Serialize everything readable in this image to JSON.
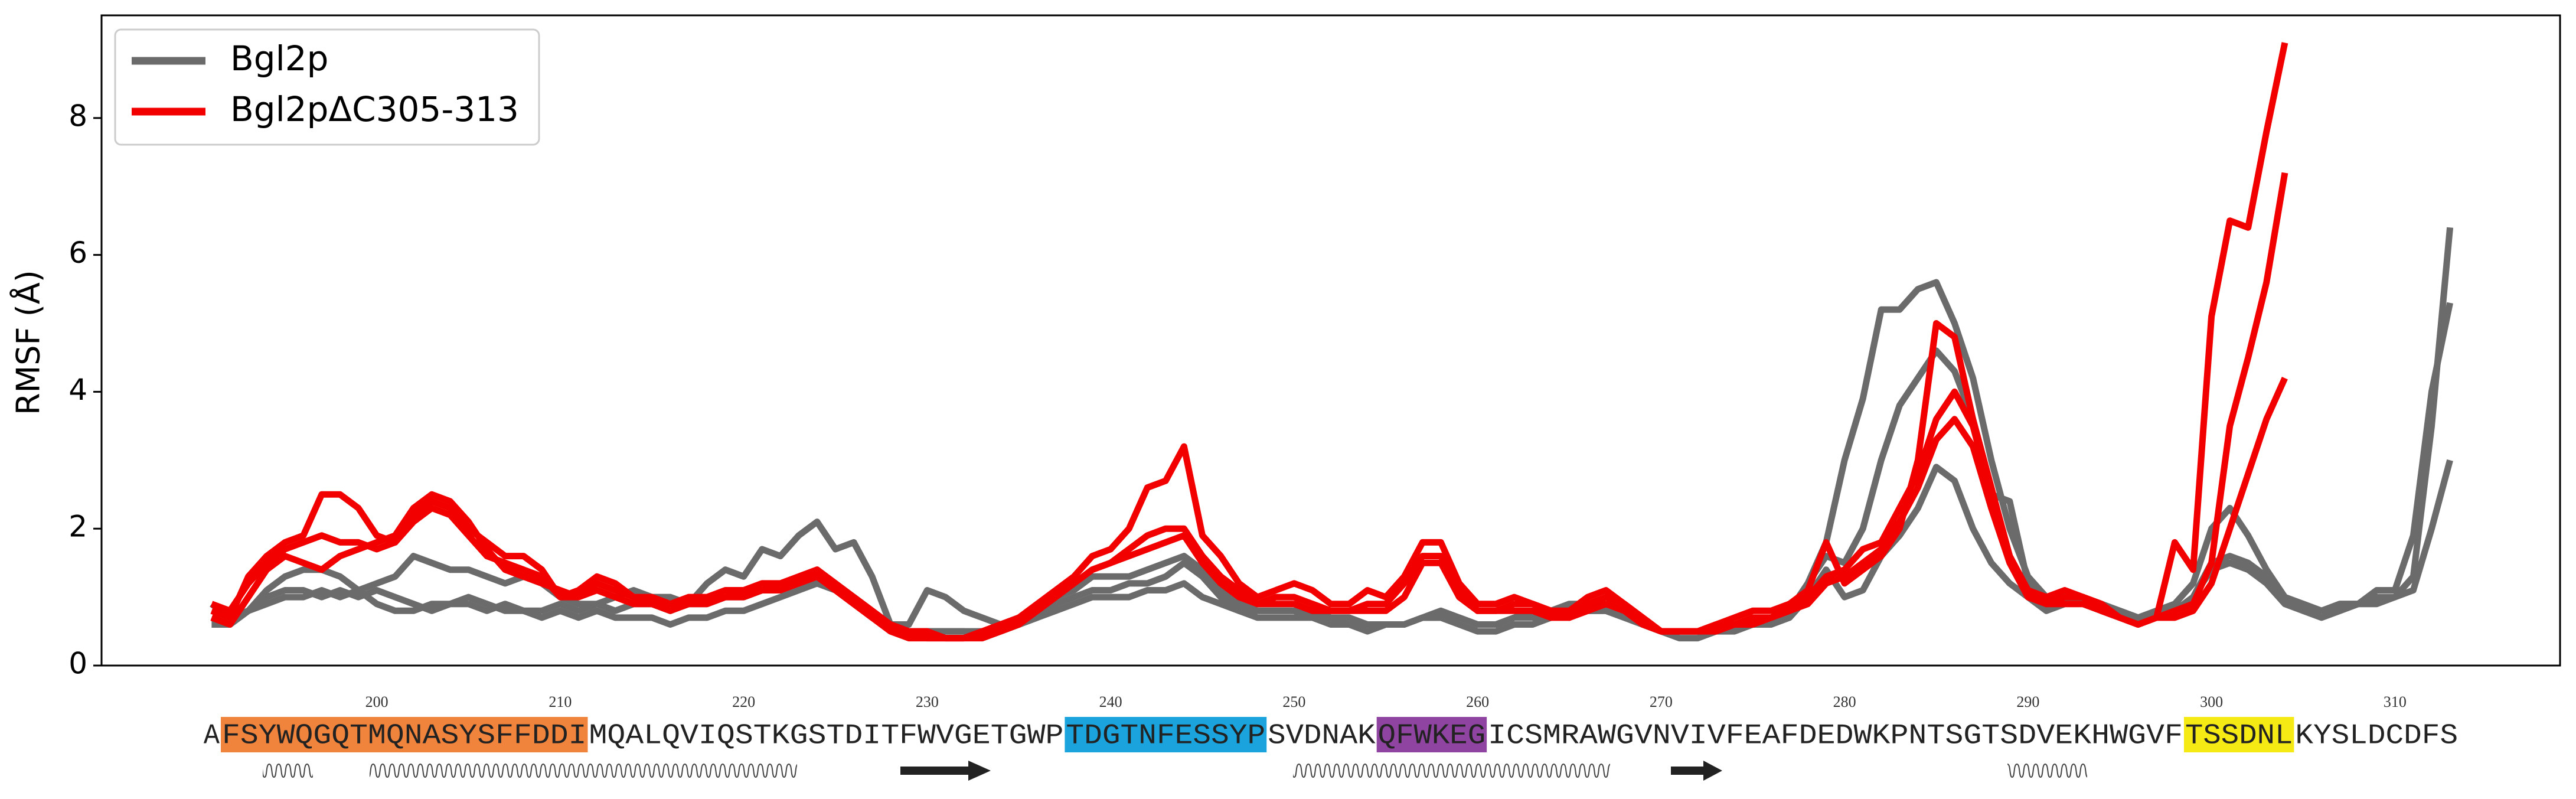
{
  "chart_data": {
    "type": "line",
    "y_label": "RMSF (Å)",
    "x": [
      191,
      192,
      193,
      194,
      195,
      196,
      197,
      198,
      199,
      200,
      201,
      202,
      203,
      204,
      205,
      206,
      207,
      208,
      209,
      210,
      211,
      212,
      213,
      214,
      215,
      216,
      217,
      218,
      219,
      220,
      221,
      222,
      223,
      224,
      225,
      226,
      227,
      228,
      229,
      230,
      231,
      232,
      233,
      234,
      235,
      236,
      237,
      238,
      239,
      240,
      241,
      242,
      243,
      244,
      245,
      246,
      247,
      248,
      249,
      250,
      251,
      252,
      253,
      254,
      255,
      256,
      257,
      258,
      259,
      260,
      261,
      262,
      263,
      264,
      265,
      266,
      267,
      268,
      269,
      270,
      271,
      272,
      273,
      274,
      275,
      276,
      277,
      278,
      279,
      280,
      281,
      282,
      283,
      284,
      285,
      286,
      287,
      288,
      289,
      290,
      291,
      292,
      293,
      294,
      295,
      296,
      297,
      298,
      299,
      300,
      301,
      302,
      303,
      304,
      305,
      306,
      307,
      308,
      309,
      310,
      311,
      312,
      313
    ],
    "xlim": [
      185,
      319
    ],
    "ylim": [
      0,
      9.5
    ],
    "yticks": [
      0,
      2,
      4,
      6,
      8
    ],
    "grid": false,
    "legend": "upper left",
    "series": [
      {
        "name": "Bgl2p",
        "color": "#6b6b6b",
        "replicates": [
          [
            0.9,
            0.7,
            0.8,
            1.0,
            1.1,
            1.1,
            1.0,
            1.1,
            1.0,
            1.1,
            1.0,
            0.9,
            0.8,
            0.9,
            0.9,
            0.8,
            0.9,
            0.8,
            0.8,
            0.9,
            0.8,
            0.9,
            0.8,
            0.9,
            0.9,
            0.8,
            0.9,
            0.9,
            1.0,
            1.0,
            1.1,
            1.1,
            1.2,
            1.4,
            1.2,
            1.0,
            0.8,
            0.6,
            0.5,
            0.5,
            0.5,
            0.5,
            0.5,
            0.5,
            0.6,
            0.7,
            0.8,
            0.9,
            1.0,
            1.0,
            1.0,
            1.1,
            1.1,
            1.2,
            1.0,
            0.9,
            0.8,
            0.8,
            0.8,
            0.8,
            0.8,
            0.7,
            0.7,
            0.6,
            0.6,
            0.6,
            0.7,
            0.7,
            0.7,
            0.6,
            0.6,
            0.7,
            0.7,
            0.7,
            0.8,
            0.8,
            0.8,
            0.7,
            0.6,
            0.5,
            0.5,
            0.5,
            0.5,
            0.6,
            0.6,
            0.7,
            0.8,
            1.2,
            1.8,
            3.0,
            3.9,
            5.2,
            5.2,
            5.5,
            5.6,
            5.0,
            4.2,
            3.0,
            2.0,
            1.3,
            1.0,
            1.0,
            0.9,
            0.8,
            0.8,
            0.7,
            0.7,
            0.8,
            1.0,
            1.5,
            1.6,
            1.5,
            1.3,
            1.0,
            0.9,
            0.8,
            0.9,
            0.9,
            1.0,
            1.0,
            1.3,
            3.5,
            6.4
          ],
          [
            0.6,
            0.6,
            0.8,
            1.1,
            1.3,
            1.4,
            1.4,
            1.3,
            1.1,
            1.2,
            1.3,
            1.6,
            1.5,
            1.4,
            1.4,
            1.3,
            1.2,
            1.3,
            1.2,
            1.0,
            0.9,
            0.9,
            1.0,
            1.1,
            1.0,
            1.0,
            0.9,
            1.2,
            1.4,
            1.3,
            1.7,
            1.6,
            1.9,
            2.1,
            1.7,
            1.8,
            1.3,
            0.6,
            0.6,
            1.1,
            1.0,
            0.8,
            0.7,
            0.6,
            0.7,
            0.8,
            1.0,
            1.1,
            1.3,
            1.3,
            1.3,
            1.4,
            1.5,
            1.6,
            1.4,
            1.1,
            0.9,
            0.8,
            0.8,
            0.8,
            0.7,
            0.7,
            0.6,
            0.6,
            0.6,
            0.6,
            0.7,
            0.8,
            0.7,
            0.6,
            0.6,
            0.7,
            0.8,
            0.8,
            0.9,
            0.9,
            0.9,
            0.8,
            0.6,
            0.5,
            0.5,
            0.5,
            0.5,
            0.6,
            0.6,
            0.7,
            0.8,
            1.2,
            1.6,
            1.5,
            2.0,
            3.0,
            3.8,
            4.2,
            4.6,
            4.3,
            3.6,
            2.5,
            2.4,
            1.2,
            0.9,
            1.0,
            1.0,
            0.9,
            0.8,
            0.7,
            0.8,
            0.9,
            1.2,
            2.0,
            2.3,
            1.9,
            1.4,
            1.0,
            0.8,
            0.8,
            0.9,
            0.9,
            1.1,
            1.1,
            1.9,
            4.0,
            5.3
          ],
          [
            0.7,
            0.6,
            0.8,
            0.9,
            1.0,
            1.0,
            1.1,
            1.0,
            1.1,
            0.9,
            0.8,
            0.8,
            0.9,
            0.9,
            1.0,
            0.9,
            0.8,
            0.8,
            0.7,
            0.8,
            0.7,
            0.8,
            0.7,
            0.7,
            0.7,
            0.6,
            0.7,
            0.7,
            0.8,
            0.8,
            0.9,
            1.0,
            1.1,
            1.2,
            1.1,
            1.0,
            0.8,
            0.6,
            0.5,
            0.5,
            0.5,
            0.5,
            0.4,
            0.5,
            0.6,
            0.7,
            0.9,
            1.0,
            1.1,
            1.1,
            1.2,
            1.2,
            1.3,
            1.5,
            1.3,
            1.0,
            0.8,
            0.7,
            0.7,
            0.7,
            0.7,
            0.6,
            0.6,
            0.5,
            0.6,
            0.6,
            0.7,
            0.7,
            0.6,
            0.5,
            0.5,
            0.6,
            0.6,
            0.7,
            0.8,
            0.8,
            0.8,
            0.7,
            0.6,
            0.5,
            0.4,
            0.4,
            0.5,
            0.5,
            0.6,
            0.6,
            0.7,
            1.0,
            1.4,
            1.0,
            1.1,
            1.6,
            1.9,
            2.3,
            2.9,
            2.7,
            2.0,
            1.5,
            1.2,
            1.0,
            0.8,
            0.9,
            1.0,
            0.8,
            0.7,
            0.7,
            0.7,
            0.8,
            1.0,
            1.4,
            1.5,
            1.4,
            1.2,
            0.9,
            0.8,
            0.7,
            0.8,
            0.9,
            0.9,
            1.0,
            1.1,
            2.0,
            3.0
          ]
        ]
      },
      {
        "name": "Bgl2pΔC305-313",
        "color": "#f20000",
        "replicates": [
          [
            0.8,
            0.7,
            1.3,
            1.6,
            1.8,
            1.9,
            2.5,
            2.5,
            2.3,
            1.9,
            1.8,
            2.2,
            2.4,
            2.3,
            2.0,
            1.8,
            1.6,
            1.6,
            1.4,
            1.0,
            1.1,
            1.3,
            1.2,
            1.0,
            1.0,
            0.9,
            1.0,
            1.0,
            1.1,
            1.1,
            1.2,
            1.2,
            1.3,
            1.4,
            1.2,
            1.0,
            0.8,
            0.6,
            0.5,
            0.4,
            0.4,
            0.4,
            0.5,
            0.5,
            0.7,
            0.9,
            1.1,
            1.3,
            1.6,
            1.7,
            2.0,
            2.6,
            2.7,
            3.2,
            1.9,
            1.6,
            1.2,
            1.0,
            1.1,
            1.2,
            1.1,
            0.9,
            0.9,
            1.1,
            1.0,
            1.3,
            1.8,
            1.8,
            1.2,
            0.9,
            0.9,
            1.0,
            0.9,
            0.8,
            0.8,
            1.0,
            1.1,
            0.9,
            0.7,
            0.5,
            0.5,
            0.5,
            0.6,
            0.7,
            0.8,
            0.8,
            0.9,
            1.1,
            1.8,
            1.2,
            1.4,
            1.6,
            2.0,
            3.0,
            5.0,
            4.8,
            3.6,
            2.6,
            1.6,
            1.1,
            1.0,
            1.1,
            1.0,
            0.9,
            0.7,
            0.6,
            0.7,
            1.8,
            1.4,
            5.1,
            6.5,
            6.4,
            7.8,
            9.1,
            null,
            null,
            null,
            null,
            null,
            null,
            null,
            null,
            null
          ],
          [
            0.7,
            0.6,
            1.0,
            1.4,
            1.6,
            1.5,
            1.4,
            1.6,
            1.7,
            1.8,
            1.9,
            2.3,
            2.5,
            2.4,
            2.1,
            1.7,
            1.4,
            1.3,
            1.2,
            1.1,
            1.0,
            1.2,
            1.1,
            1.0,
            0.9,
            0.9,
            0.9,
            1.0,
            1.0,
            1.1,
            1.1,
            1.2,
            1.2,
            1.3,
            1.1,
            0.9,
            0.7,
            0.6,
            0.5,
            0.5,
            0.4,
            0.4,
            0.5,
            0.6,
            0.7,
            0.8,
            1.0,
            1.2,
            1.4,
            1.5,
            1.7,
            1.9,
            2.0,
            2.0,
            1.6,
            1.3,
            1.1,
            0.9,
            1.0,
            1.0,
            0.9,
            0.8,
            0.8,
            0.9,
            0.9,
            1.2,
            1.6,
            1.6,
            1.1,
            0.8,
            0.8,
            0.9,
            0.9,
            0.8,
            0.7,
            0.9,
            1.0,
            0.9,
            0.7,
            0.5,
            0.5,
            0.5,
            0.6,
            0.6,
            0.7,
            0.7,
            0.8,
            1.0,
            1.3,
            1.4,
            1.7,
            1.8,
            2.3,
            2.8,
            3.6,
            4.0,
            3.5,
            2.5,
            1.6,
            1.1,
            0.9,
            1.0,
            1.0,
            0.8,
            0.7,
            0.6,
            0.7,
            0.8,
            0.9,
            1.5,
            3.5,
            4.5,
            5.6,
            7.2,
            null,
            null,
            null,
            null,
            null,
            null,
            null,
            null,
            null
          ],
          [
            0.9,
            0.8,
            1.2,
            1.5,
            1.7,
            1.8,
            1.9,
            1.8,
            1.8,
            1.7,
            1.8,
            2.1,
            2.3,
            2.2,
            1.9,
            1.6,
            1.5,
            1.4,
            1.3,
            1.0,
            1.0,
            1.1,
            1.0,
            0.9,
            0.9,
            0.8,
            0.9,
            0.9,
            1.0,
            1.0,
            1.1,
            1.1,
            1.2,
            1.3,
            1.1,
            0.9,
            0.7,
            0.5,
            0.4,
            0.4,
            0.4,
            0.4,
            0.4,
            0.5,
            0.6,
            0.8,
            1.0,
            1.2,
            1.4,
            1.5,
            1.6,
            1.7,
            1.8,
            1.9,
            1.5,
            1.2,
            1.0,
            0.9,
            0.9,
            0.9,
            0.8,
            0.8,
            0.8,
            0.8,
            0.8,
            1.0,
            1.5,
            1.5,
            1.0,
            0.8,
            0.8,
            0.8,
            0.8,
            0.7,
            0.7,
            0.8,
            0.9,
            0.8,
            0.6,
            0.5,
            0.5,
            0.5,
            0.5,
            0.6,
            0.6,
            0.7,
            0.8,
            0.9,
            1.2,
            1.3,
            1.5,
            1.7,
            2.1,
            2.6,
            3.3,
            3.6,
            3.2,
            2.3,
            1.5,
            1.0,
            0.9,
            0.9,
            0.9,
            0.8,
            0.7,
            0.6,
            0.7,
            0.7,
            0.8,
            1.2,
            2.0,
            2.8,
            3.6,
            4.2,
            null,
            null,
            null,
            null,
            null,
            null,
            null,
            null,
            null
          ]
        ]
      }
    ],
    "sequence": {
      "ticks": [
        200,
        210,
        220,
        230,
        240,
        250,
        260,
        270,
        280,
        290,
        300,
        310
      ],
      "segments": [
        {
          "text": "A"
        },
        {
          "text": "FSYWQGQTMQNASYSFFDDI",
          "color": "#f0843c"
        },
        {
          "text": "MQALQVIQSTKGSTDITFWVGETGWP"
        },
        {
          "text": "TDGTNFESSYP",
          "color": "#1aa3dc"
        },
        {
          "text": "SVDNAK"
        },
        {
          "text": "QFWKEG",
          "color": "#8e44a0"
        },
        {
          "text": "ICSMRAWGVNVIVFEAFDEDWKPNTSGTSDVEKHWGVF"
        },
        {
          "text": "TSSDNL",
          "color": "#f5ea14"
        },
        {
          "text": "KYSLDCDFS"
        }
      ]
    }
  }
}
